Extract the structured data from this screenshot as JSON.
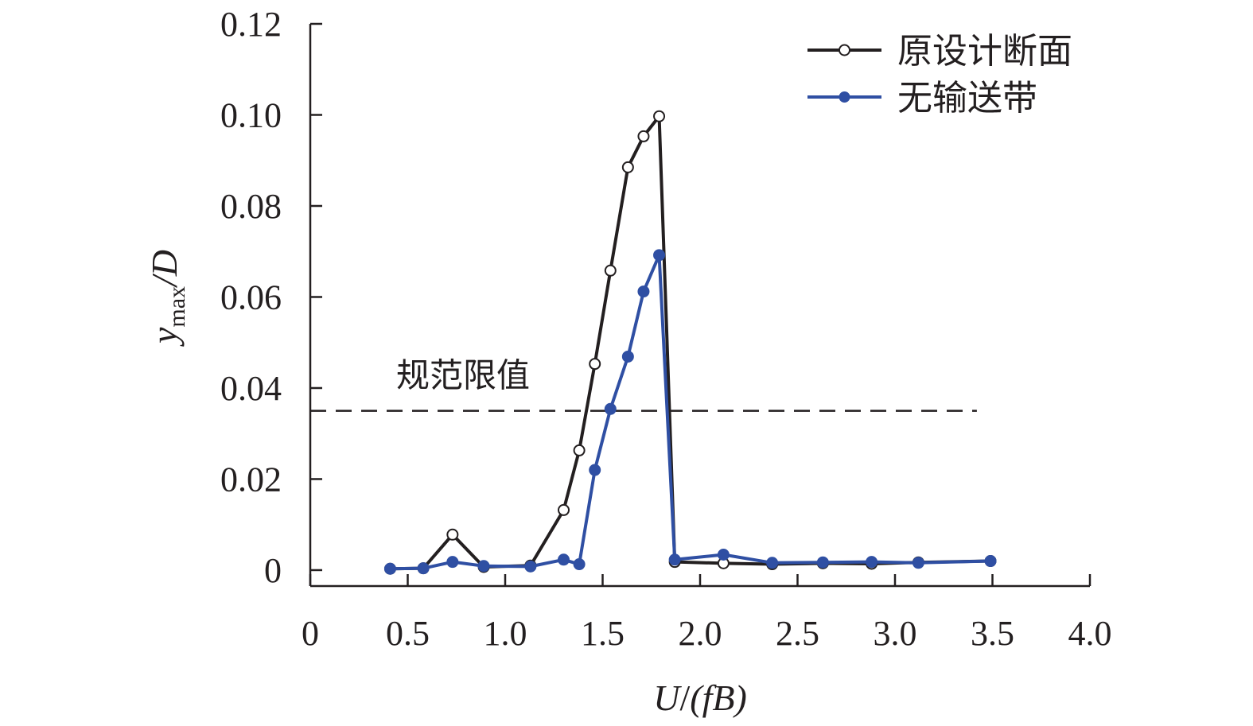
{
  "chart_data": {
    "type": "line",
    "xlabel": "U/(fB)",
    "ylabel": "y_max/D",
    "ylabel_parts": {
      "main": "y",
      "sub": "max",
      "rest": "/D"
    },
    "xlim": [
      0,
      4.0
    ],
    "ylim": [
      -0.0035,
      0.12
    ],
    "x_ticks": [
      0,
      0.5,
      1.0,
      1.5,
      2.0,
      2.5,
      3.0,
      3.5,
      4.0
    ],
    "x_tick_labels": [
      "0",
      "0.5",
      "1.0",
      "1.5",
      "2.0",
      "2.5",
      "3.0",
      "3.5",
      "4.0"
    ],
    "y_ticks": [
      0,
      0.02,
      0.04,
      0.06,
      0.08,
      0.1,
      0.12
    ],
    "y_tick_labels": [
      "0",
      "0.02",
      "0.04",
      "0.06",
      "0.08",
      "0.10",
      "0.12"
    ],
    "grid": false,
    "legend_position": "top-right",
    "series": [
      {
        "name": "原设计断面",
        "color": "#231f20",
        "marker": "open-circle",
        "x": [
          0.41,
          0.58,
          0.73,
          0.89,
          1.13,
          1.3,
          1.38,
          1.46,
          1.54,
          1.63,
          1.71,
          1.79,
          1.87,
          2.12,
          2.37,
          2.63,
          2.88,
          3.12,
          3.49
        ],
        "y": [
          0.0003,
          0.0004,
          0.0078,
          0.0007,
          0.001,
          0.0132,
          0.0263,
          0.0453,
          0.0658,
          0.0885,
          0.0953,
          0.0997,
          0.0018,
          0.0015,
          0.0013,
          0.0015,
          0.0014,
          0.0017,
          0.002
        ]
      },
      {
        "name": "无输送带",
        "color": "#2f4fa3",
        "marker": "filled-circle",
        "x": [
          0.41,
          0.58,
          0.73,
          0.89,
          1.13,
          1.3,
          1.38,
          1.46,
          1.54,
          1.63,
          1.71,
          1.79,
          1.87,
          2.12,
          2.37,
          2.63,
          2.88,
          3.12,
          3.49
        ],
        "y": [
          0.0003,
          0.0004,
          0.0018,
          0.0009,
          0.0008,
          0.0023,
          0.0013,
          0.022,
          0.0354,
          0.0469,
          0.0612,
          0.0692,
          0.0023,
          0.0034,
          0.0016,
          0.0017,
          0.0018,
          0.0016,
          0.002
        ]
      }
    ],
    "reference_line": {
      "label": "规范限值",
      "y": 0.035,
      "x_start": 0,
      "x_end": 3.42,
      "style": "dashed",
      "color": "#231f20"
    }
  }
}
